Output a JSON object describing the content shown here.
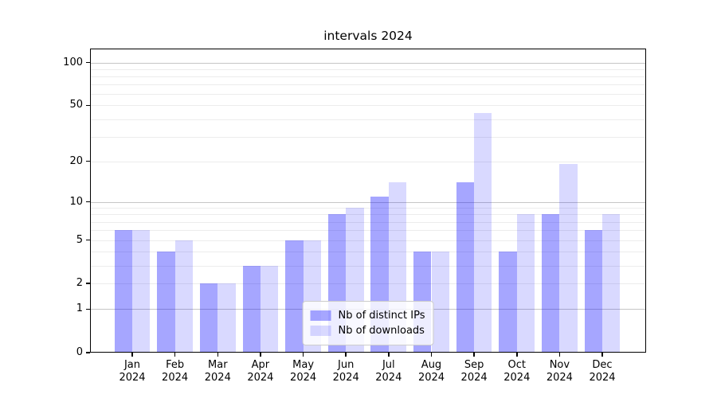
{
  "chart_data": {
    "type": "bar",
    "title": "intervals 2024",
    "categories": [
      "Jan",
      "Feb",
      "Mar",
      "Apr",
      "May",
      "Jun",
      "Jul",
      "Aug",
      "Sep",
      "Oct",
      "Nov",
      "Dec"
    ],
    "category_year": "2024",
    "series": [
      {
        "name": "Nb of distinct IPs",
        "color": "rgba(0,0,255,0.35)",
        "values": [
          6,
          4,
          2,
          3,
          5,
          8,
          11,
          4,
          14,
          4,
          8,
          6
        ]
      },
      {
        "name": "Nb of downloads",
        "color": "rgba(0,0,255,0.15)",
        "values": [
          6,
          5,
          2,
          3,
          5,
          9,
          14,
          4,
          44,
          8,
          19,
          8
        ]
      }
    ],
    "yscale": "log1p",
    "ylim": [
      0,
      125
    ],
    "yticks": [
      100,
      50,
      20,
      10,
      5,
      2,
      1,
      0
    ],
    "grid_major": [
      1,
      10,
      100
    ],
    "grid_minor": [
      2,
      3,
      4,
      5,
      6,
      7,
      8,
      9,
      20,
      30,
      40,
      50,
      60,
      70,
      80,
      90
    ],
    "legend_position": "lower center",
    "colors": {
      "grid_major": "#c6c6c6",
      "grid_minor": "#ececec",
      "spine": "#000000",
      "text": "#000000",
      "background": "#ffffff"
    }
  }
}
